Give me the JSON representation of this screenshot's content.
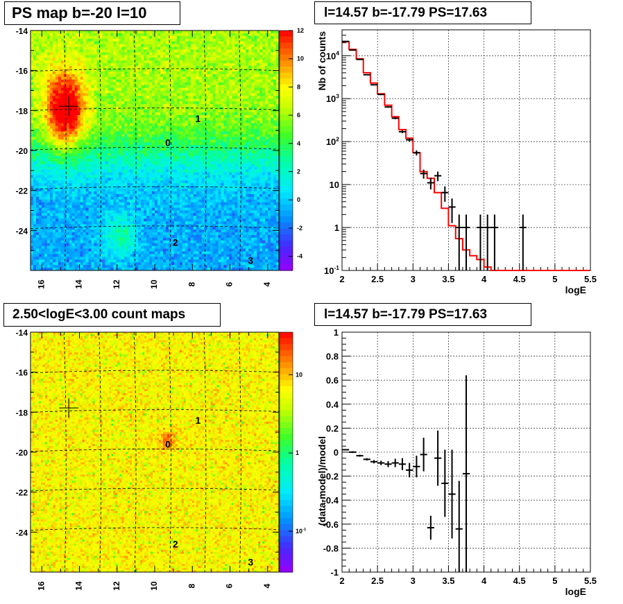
{
  "panels": {
    "tl_title": "PS map b=-20 l=10",
    "tr_title": "l=14.57 b=-17.79 PS=17.63",
    "bl_title": "2.50<logE<3.00 count maps",
    "br_title": "l=14.57 b=-17.79 PS=17.63"
  },
  "colors": {
    "spectrum_model": "#ff0000",
    "data_points": "#000000",
    "gridlines": "#000000"
  },
  "chart_data": [
    {
      "id": "ps_map",
      "type": "heatmap",
      "title": "PS map b=-20 l=10",
      "x_ticks": [
        16,
        14,
        12,
        10,
        8,
        6,
        4
      ],
      "y_ticks": [
        -14,
        -16,
        -18,
        -20,
        -22,
        -24
      ],
      "xlim": [
        16.6,
        3.4
      ],
      "ylim": [
        -26,
        -14
      ],
      "colorbar_ticks": [
        12,
        10,
        8,
        6,
        4,
        2,
        0,
        -2,
        -4
      ],
      "colorbar_range": [
        -5,
        12
      ],
      "source_labels": [
        "0",
        "1",
        "2",
        "3"
      ],
      "source_positions": [
        [
          9.3,
          -19.6
        ],
        [
          7.7,
          -18.4
        ],
        [
          8.9,
          -24.6
        ],
        [
          4.9,
          -25.5
        ]
      ],
      "marker": [
        14.57,
        -17.79
      ]
    },
    {
      "id": "spectrum",
      "type": "line",
      "title": "l=14.57 b=-17.79 PS=17.63",
      "xlabel": "logE",
      "ylabel": "Nb of counts",
      "xlim": [
        2,
        5.5
      ],
      "ylim": [
        0.1,
        40000
      ],
      "log_y": true,
      "x_ticks": [
        "2",
        "2.5",
        "3",
        "3.5",
        "4",
        "4.5",
        "5",
        "5.5"
      ],
      "y_ticks": [
        {
          "v": 0.1,
          "label": "10",
          "sup": "-1"
        },
        {
          "v": 1,
          "label": "1",
          "sup": ""
        },
        {
          "v": 10,
          "label": "10",
          "sup": ""
        },
        {
          "v": 100,
          "label": "10",
          "sup": "2"
        },
        {
          "v": 1000,
          "label": "10",
          "sup": "3"
        },
        {
          "v": 10000,
          "label": "10",
          "sup": "4"
        }
      ],
      "model_bin_edges": [
        2.0,
        2.1,
        2.2,
        2.3,
        2.4,
        2.5,
        2.6,
        2.7,
        2.8,
        2.9,
        3.0,
        3.1,
        3.2,
        3.3,
        3.4,
        3.5,
        3.6,
        3.7,
        3.8,
        3.9,
        4.0,
        4.1,
        4.2,
        5.5
      ],
      "model_values": [
        21000,
        14000,
        8500,
        4000,
        2300,
        1300,
        700,
        380,
        190,
        120,
        55,
        20,
        14,
        6.5,
        2.8,
        1.1,
        0.55,
        0.3,
        0.22,
        0.18,
        0.12,
        0.1,
        0.1
      ],
      "data_points": [
        {
          "x": 2.05,
          "y": 21500
        },
        {
          "x": 2.15,
          "y": 13500
        },
        {
          "x": 2.25,
          "y": 8200
        },
        {
          "x": 2.35,
          "y": 3600
        },
        {
          "x": 2.45,
          "y": 2100
        },
        {
          "x": 2.55,
          "y": 1250
        },
        {
          "x": 2.65,
          "y": 640
        },
        {
          "x": 2.75,
          "y": 350
        },
        {
          "x": 2.85,
          "y": 170
        },
        {
          "x": 2.95,
          "y": 110
        },
        {
          "x": 3.05,
          "y": 55
        },
        {
          "x": 3.15,
          "y": 18
        },
        {
          "x": 3.25,
          "y": 11
        },
        {
          "x": 3.35,
          "y": 16
        },
        {
          "x": 3.45,
          "y": 6.5
        },
        {
          "x": 3.55,
          "y": 3
        },
        {
          "x": 3.65,
          "y": 1
        },
        {
          "x": 3.75,
          "y": 1
        },
        {
          "x": 3.95,
          "y": 1
        },
        {
          "x": 4.05,
          "y": 1
        },
        {
          "x": 4.15,
          "y": 1
        },
        {
          "x": 4.55,
          "y": 1
        }
      ]
    },
    {
      "id": "count_map",
      "type": "heatmap",
      "title": "2.50<logE<3.00 count maps",
      "x_ticks": [
        16,
        14,
        12,
        10,
        8,
        6,
        4
      ],
      "y_ticks": [
        -14,
        -16,
        -18,
        -20,
        -22,
        -24
      ],
      "xlim": [
        16.6,
        3.4
      ],
      "ylim": [
        -26,
        -14
      ],
      "colorbar_ticks": [
        {
          "v": 10,
          "label": "10",
          "sup": ""
        },
        {
          "v": 1,
          "label": "1",
          "sup": ""
        },
        {
          "v": 0.1,
          "label": "10",
          "sup": "-1"
        }
      ],
      "colorbar_range": [
        0.03,
        35
      ],
      "source_labels": [
        "0",
        "1",
        "2",
        "3"
      ],
      "source_positions": [
        [
          9.3,
          -19.6
        ],
        [
          7.7,
          -18.4
        ],
        [
          8.9,
          -24.6
        ],
        [
          4.9,
          -25.5
        ]
      ],
      "marker": [
        14.57,
        -17.79
      ]
    },
    {
      "id": "residuals",
      "type": "scatter",
      "title": "l=14.57 b=-17.79 PS=17.63",
      "xlabel": "logE",
      "ylabel": "(data-model)/model",
      "xlim": [
        2,
        5.5
      ],
      "ylim": [
        -1,
        1
      ],
      "x_ticks": [
        "2",
        "2.5",
        "3",
        "3.5",
        "4",
        "4.5",
        "5",
        "5.5"
      ],
      "y_ticks": [
        "-1",
        "-0.8",
        "-0.6",
        "-0.4",
        "-0.2",
        "0",
        "0.2",
        "0.4",
        "0.6",
        "0.8",
        "1"
      ],
      "points": [
        {
          "x": 2.05,
          "y": 0.02,
          "err": 0.005
        },
        {
          "x": 2.15,
          "y": 0.0,
          "err": 0.007
        },
        {
          "x": 2.25,
          "y": -0.03,
          "err": 0.008
        },
        {
          "x": 2.35,
          "y": -0.06,
          "err": 0.01
        },
        {
          "x": 2.45,
          "y": -0.08,
          "err": 0.014
        },
        {
          "x": 2.55,
          "y": -0.09,
          "err": 0.018
        },
        {
          "x": 2.65,
          "y": -0.1,
          "err": 0.025
        },
        {
          "x": 2.75,
          "y": -0.09,
          "err": 0.035
        },
        {
          "x": 2.85,
          "y": -0.1,
          "err": 0.05
        },
        {
          "x": 2.95,
          "y": -0.15,
          "err": 0.06
        },
        {
          "x": 3.05,
          "y": -0.12,
          "err": 0.09
        },
        {
          "x": 3.15,
          "y": -0.02,
          "err": 0.14
        },
        {
          "x": 3.25,
          "y": -0.63,
          "err": 0.1
        },
        {
          "x": 3.35,
          "y": -0.05,
          "err": 0.23
        },
        {
          "x": 3.45,
          "y": -0.26,
          "err": 0.28
        },
        {
          "x": 3.55,
          "y": -0.35,
          "err": 0.37
        },
        {
          "x": 3.65,
          "y": -0.64,
          "err": 0.4
        },
        {
          "x": 3.75,
          "y": -0.18,
          "err": 0.82
        }
      ]
    }
  ]
}
